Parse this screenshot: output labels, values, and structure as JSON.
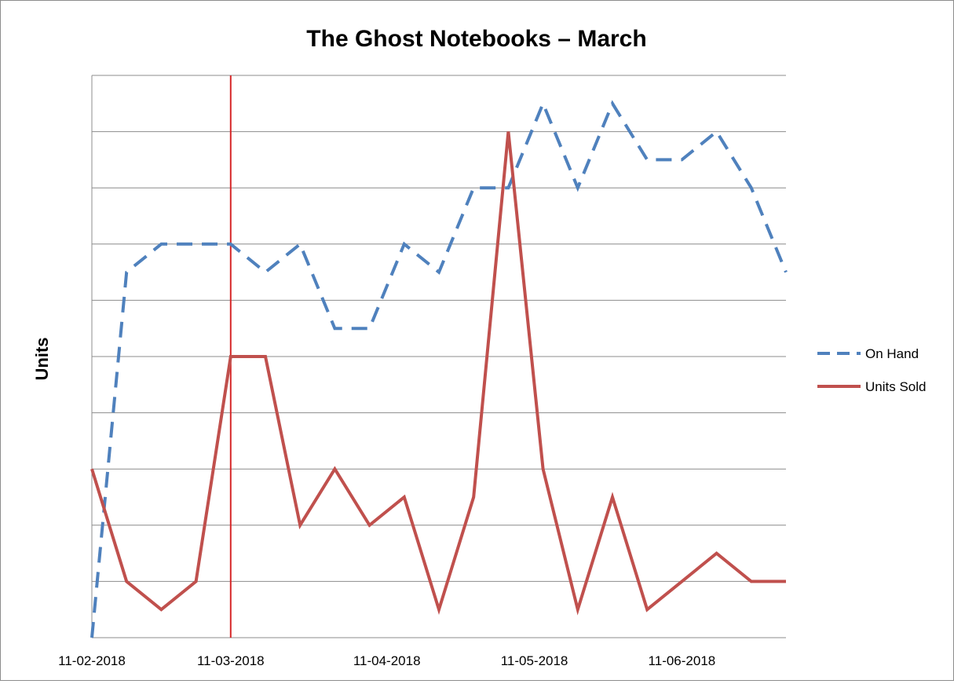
{
  "chart_data": {
    "type": "line",
    "title": "The Ghost Notebooks – March",
    "xlabel": "",
    "ylabel": "Units",
    "x_tick_labels": [
      "11-02-2018",
      "11-03-2018",
      "11-04-2018",
      "11-05-2018",
      "11-06-2018"
    ],
    "x_tick_index": [
      0,
      4,
      8.5,
      12.75,
      17
    ],
    "y_ticks_shown": false,
    "ylim": [
      0,
      10
    ],
    "grid": "horizontal",
    "legend": "right",
    "vertical_marker": {
      "x_label": "11-03-2018",
      "color": "#d62728"
    },
    "series": [
      {
        "name": "On Hand",
        "color": "#4f81bd",
        "style": "dashed",
        "values": [
          0,
          6.5,
          7,
          7,
          7,
          6.5,
          7,
          5.5,
          5.5,
          7,
          6.5,
          8,
          8,
          9.5,
          8,
          9.5,
          8.5,
          8.5,
          9,
          8,
          6.5
        ]
      },
      {
        "name": "Units Sold",
        "color": "#c0504d",
        "style": "solid",
        "values": [
          3,
          1,
          0.5,
          1,
          5,
          5,
          2,
          3,
          2,
          2.5,
          0.5,
          2.5,
          9,
          3,
          0.5,
          2.5,
          0.5,
          1,
          1.5,
          1,
          1
        ]
      }
    ]
  }
}
